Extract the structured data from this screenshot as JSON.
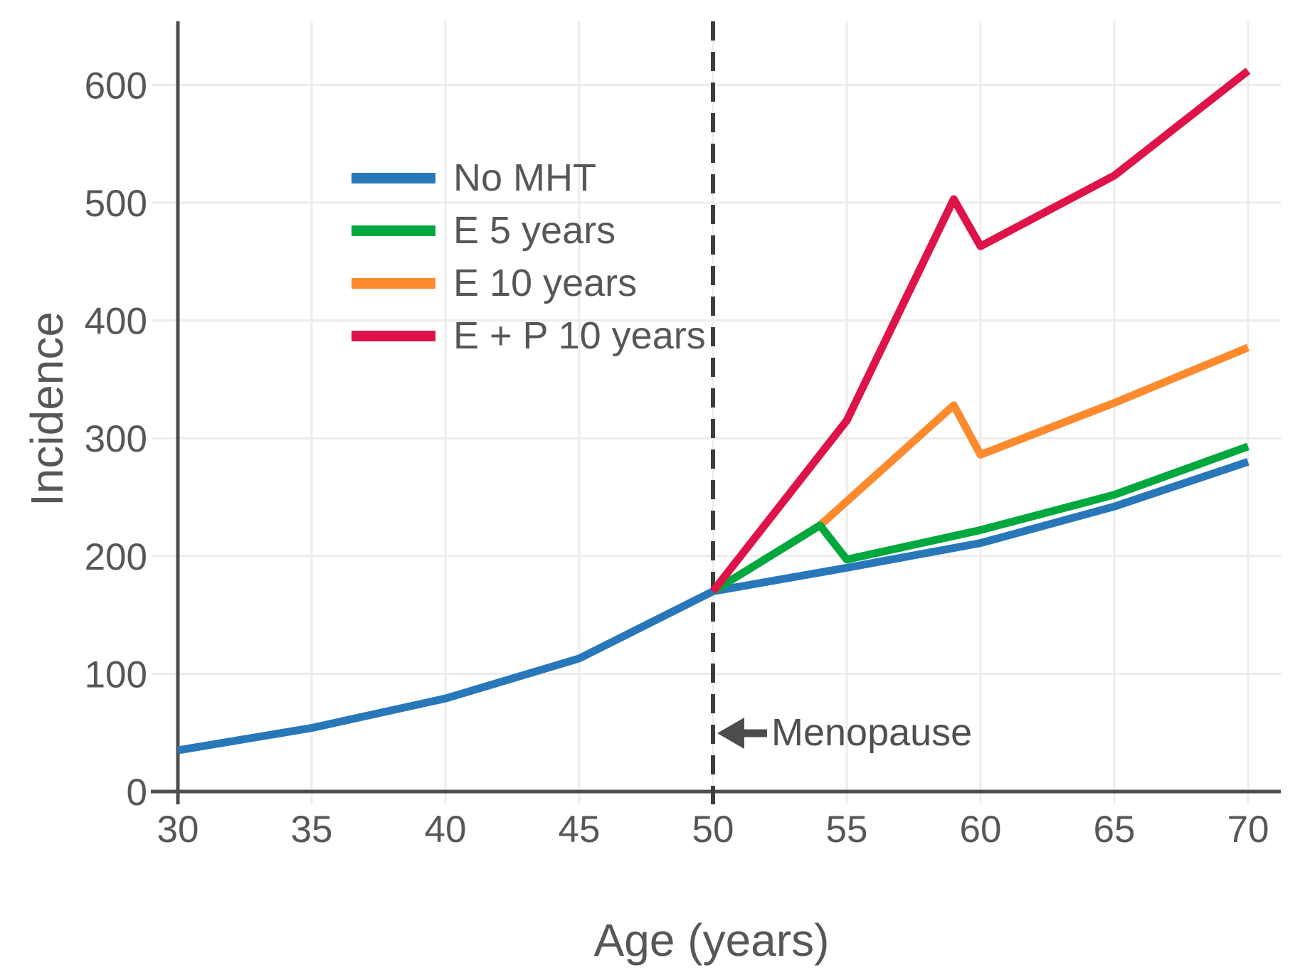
{
  "chart_data": {
    "type": "line",
    "title": "",
    "xlabel": "Age (years)",
    "ylabel": "Incidence",
    "x_ticks": [
      30,
      35,
      40,
      45,
      50,
      55,
      60,
      65,
      70
    ],
    "y_ticks": [
      0,
      100,
      200,
      300,
      400,
      500,
      600
    ],
    "xlim": [
      29,
      71.2
    ],
    "ylim": [
      0,
      654
    ],
    "grid": true,
    "legend_position": "upper left inside",
    "reference_line": {
      "x": 50,
      "style": "dashed",
      "label": "Menopause",
      "color": "#3d3d3d"
    },
    "series": [
      {
        "name": "No MHT",
        "color": "#2878b9",
        "x": [
          30,
          35,
          40,
          45,
          50,
          55,
          60,
          65,
          70
        ],
        "y": [
          35,
          54,
          79,
          113,
          170,
          190,
          211,
          242,
          280
        ]
      },
      {
        "name": "E 5 years",
        "color": "#00a83e",
        "x": [
          50,
          54,
          55,
          60,
          65,
          70
        ],
        "y": [
          170,
          226,
          197,
          222,
          252,
          293
        ]
      },
      {
        "name": "E 10 years",
        "color": "#fd8a2c",
        "x": [
          50,
          54,
          59,
          60,
          65,
          70
        ],
        "y": [
          170,
          226,
          328,
          286,
          330,
          377
        ]
      },
      {
        "name": "E + P 10 years",
        "color": "#de1348",
        "x": [
          50,
          55,
          59,
          60,
          65,
          70
        ],
        "y": [
          170,
          315,
          503,
          463,
          523,
          612
        ]
      }
    ],
    "style": {
      "grid_color": "#ececec",
      "axis_color": "#4d4d4d",
      "text_color": "#575757",
      "tick_font_px": 53,
      "legend_font_px": 54
    }
  }
}
